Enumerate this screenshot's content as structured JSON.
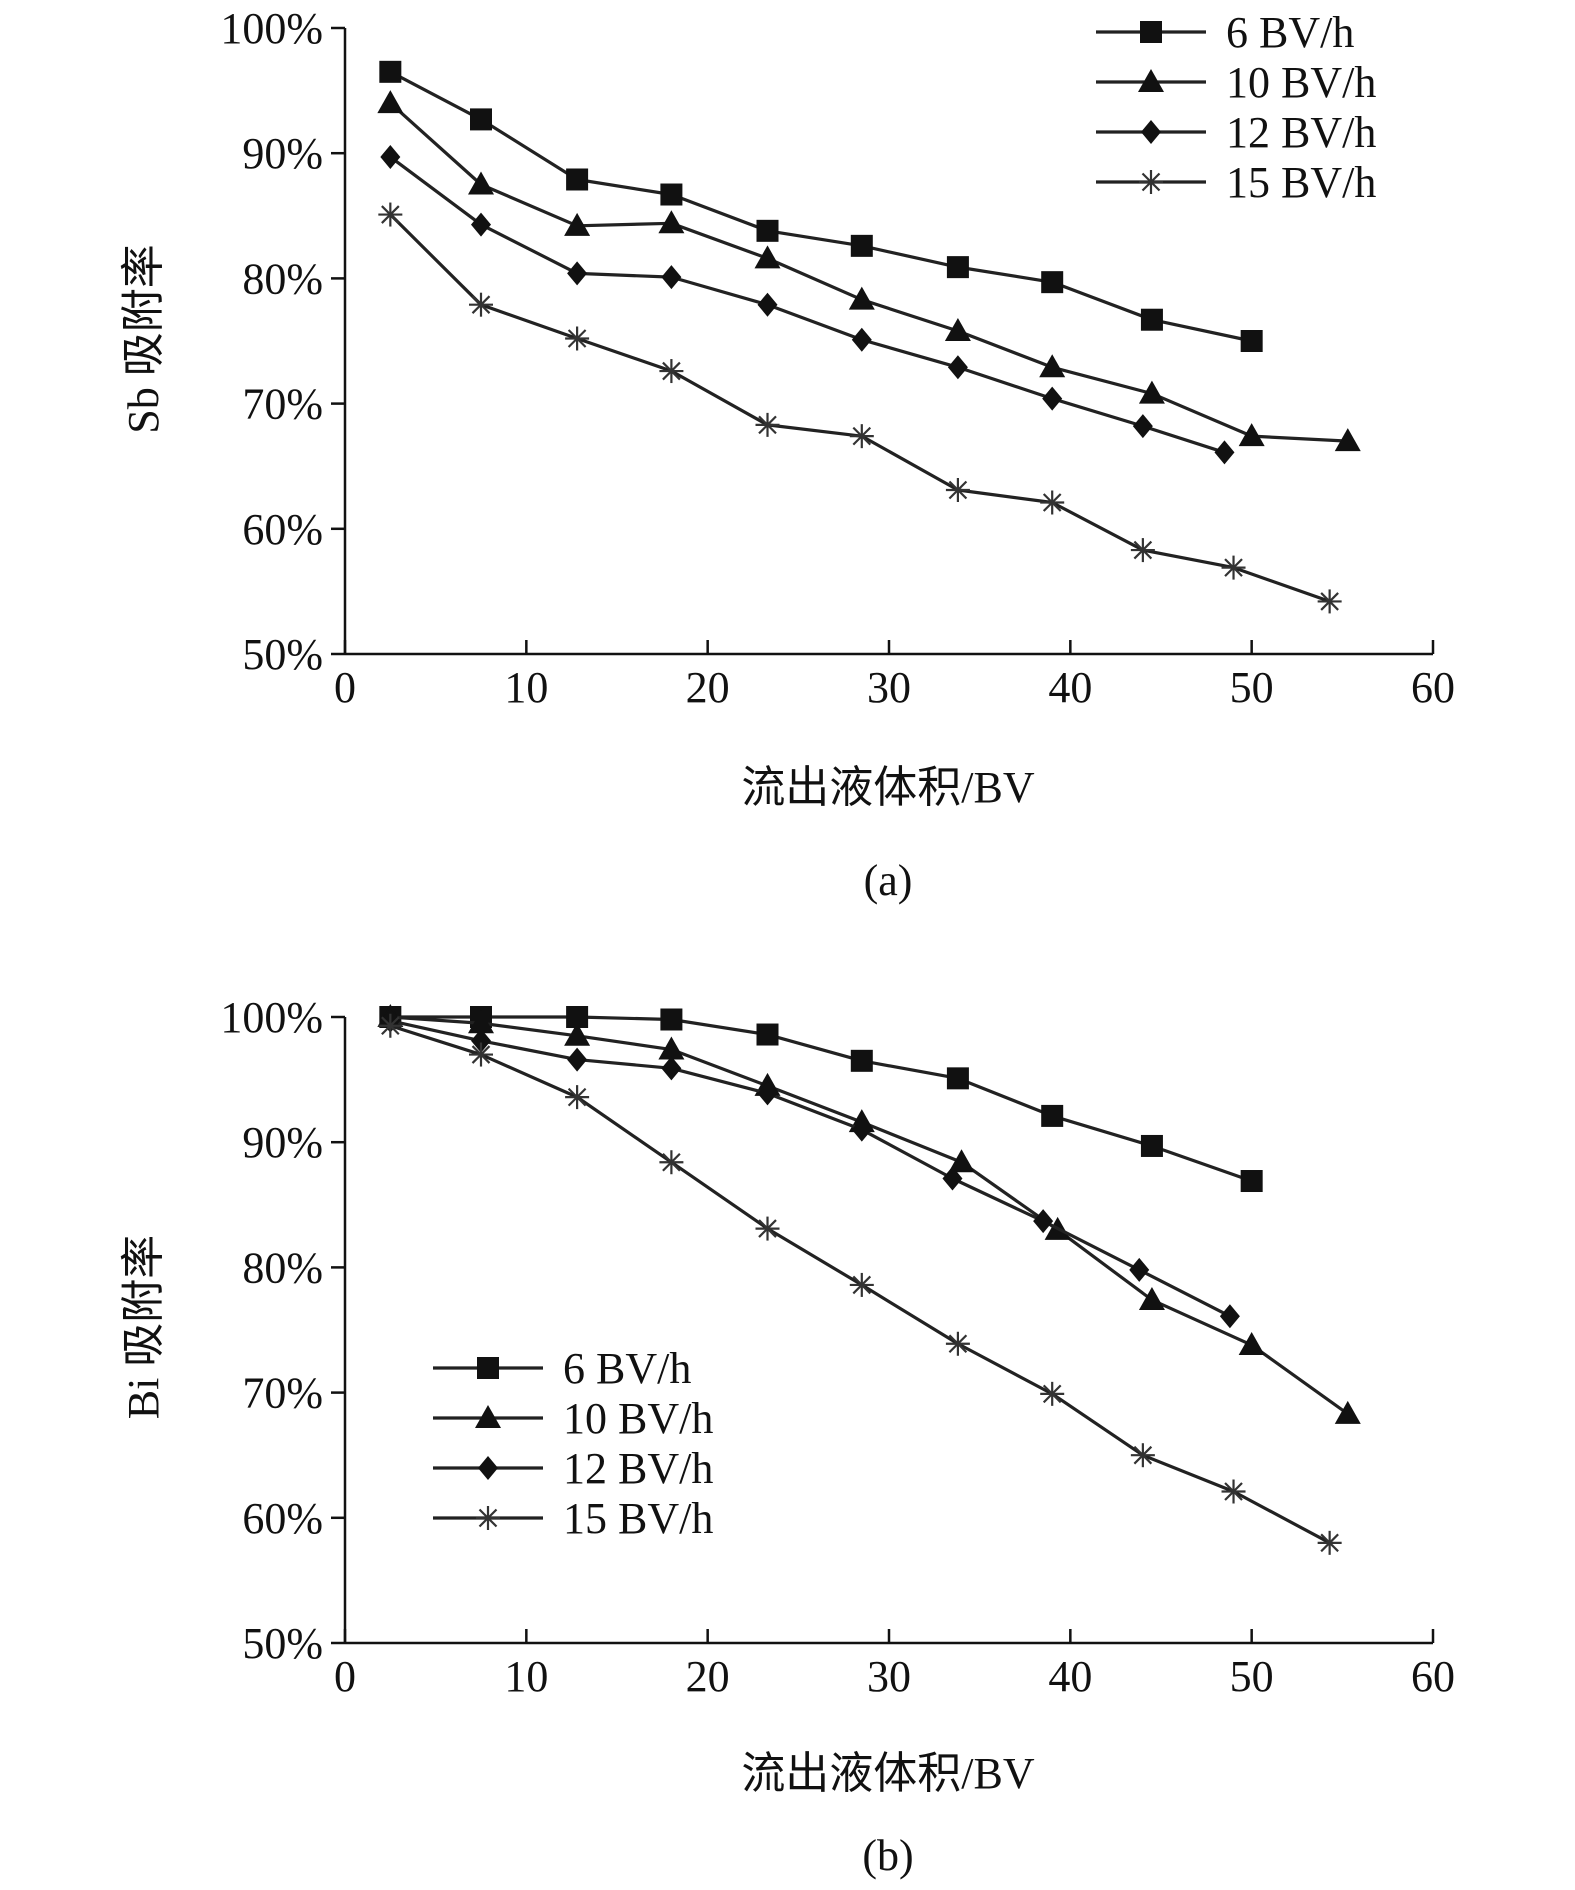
{
  "chart_data": [
    {
      "type": "line",
      "panel_label": "(a)",
      "xlabel": "流出液体积/BV",
      "ylabel": "Sb 吸附率",
      "xlim": [
        0,
        60
      ],
      "ylim": [
        50,
        100
      ],
      "x_ticks": [
        "0",
        "10",
        "20",
        "30",
        "40",
        "50",
        "60"
      ],
      "y_ticks": [
        "50%",
        "60%",
        "70%",
        "80%",
        "90%",
        "100%"
      ],
      "grid": false,
      "legend_position": "top-right",
      "series": [
        {
          "name": "6 BV/h",
          "marker": "square",
          "x": [
            2.5,
            7.5,
            12.8,
            18,
            23.3,
            28.5,
            33.8,
            39,
            44.5,
            50
          ],
          "y": [
            96.5,
            92.7,
            87.9,
            86.7,
            83.8,
            82.6,
            80.9,
            79.7,
            76.7,
            75
          ]
        },
        {
          "name": "10 BV/h",
          "marker": "triangle",
          "x": [
            2.5,
            7.5,
            12.8,
            18,
            23.3,
            28.5,
            33.8,
            39,
            44.5,
            50,
            55.3
          ],
          "y": [
            94,
            87.5,
            84.2,
            84.4,
            81.6,
            78.3,
            75.8,
            72.9,
            70.8,
            67.4,
            67
          ]
        },
        {
          "name": "12 BV/h",
          "marker": "diamond",
          "x": [
            2.5,
            7.5,
            12.8,
            18,
            23.3,
            28.5,
            33.8,
            39,
            44,
            48.5
          ],
          "y": [
            89.7,
            84.3,
            80.4,
            80.1,
            77.9,
            75.1,
            72.9,
            70.4,
            68.2,
            66.1
          ]
        },
        {
          "name": "15 BV/h",
          "marker": "asterisk",
          "x": [
            2.5,
            7.5,
            12.8,
            18,
            23.3,
            28.5,
            33.8,
            39,
            44,
            49,
            54.3
          ],
          "y": [
            85.1,
            77.9,
            75.2,
            72.6,
            68.3,
            67.4,
            63.1,
            62.1,
            58.3,
            56.9,
            54.2
          ]
        }
      ]
    },
    {
      "type": "line",
      "panel_label": "(b)",
      "xlabel": "流出液体积/BV",
      "ylabel": "Bi 吸附率",
      "xlim": [
        0,
        60
      ],
      "ylim": [
        50,
        100
      ],
      "x_ticks": [
        "0",
        "10",
        "20",
        "30",
        "40",
        "50",
        "60"
      ],
      "y_ticks": [
        "50%",
        "60%",
        "70%",
        "80%",
        "90%",
        "100%"
      ],
      "grid": false,
      "legend_position": "bottom-left",
      "series": [
        {
          "name": "6 BV/h",
          "marker": "square",
          "x": [
            2.5,
            7.5,
            12.8,
            18,
            23.3,
            28.5,
            33.8,
            39,
            44.5,
            50
          ],
          "y": [
            100,
            100,
            100,
            99.8,
            98.6,
            96.5,
            95.1,
            92.1,
            89.7,
            86.9
          ]
        },
        {
          "name": "10 BV/h",
          "marker": "triangle",
          "x": [
            2.5,
            7.5,
            12.8,
            18,
            23.3,
            28.5,
            34,
            39.3,
            44.5,
            50,
            55.3
          ],
          "y": [
            100,
            99.5,
            98.5,
            97.4,
            94.5,
            91.6,
            88.4,
            83,
            77.4,
            73.8,
            68.3
          ]
        },
        {
          "name": "12 BV/h",
          "marker": "diamond",
          "x": [
            2.5,
            7.5,
            12.8,
            18,
            23.3,
            28.5,
            33.5,
            38.5,
            43.8,
            48.8
          ],
          "y": [
            99.7,
            98.1,
            96.6,
            95.9,
            93.9,
            91,
            87.1,
            83.7,
            79.8,
            76.1
          ]
        },
        {
          "name": "15 BV/h",
          "marker": "asterisk",
          "x": [
            2.5,
            7.5,
            12.8,
            18,
            23.3,
            28.5,
            33.8,
            39,
            44,
            49,
            54.3
          ],
          "y": [
            99.3,
            97,
            93.6,
            88.4,
            83.1,
            78.6,
            73.9,
            69.9,
            65,
            62.1,
            58
          ]
        }
      ]
    }
  ]
}
